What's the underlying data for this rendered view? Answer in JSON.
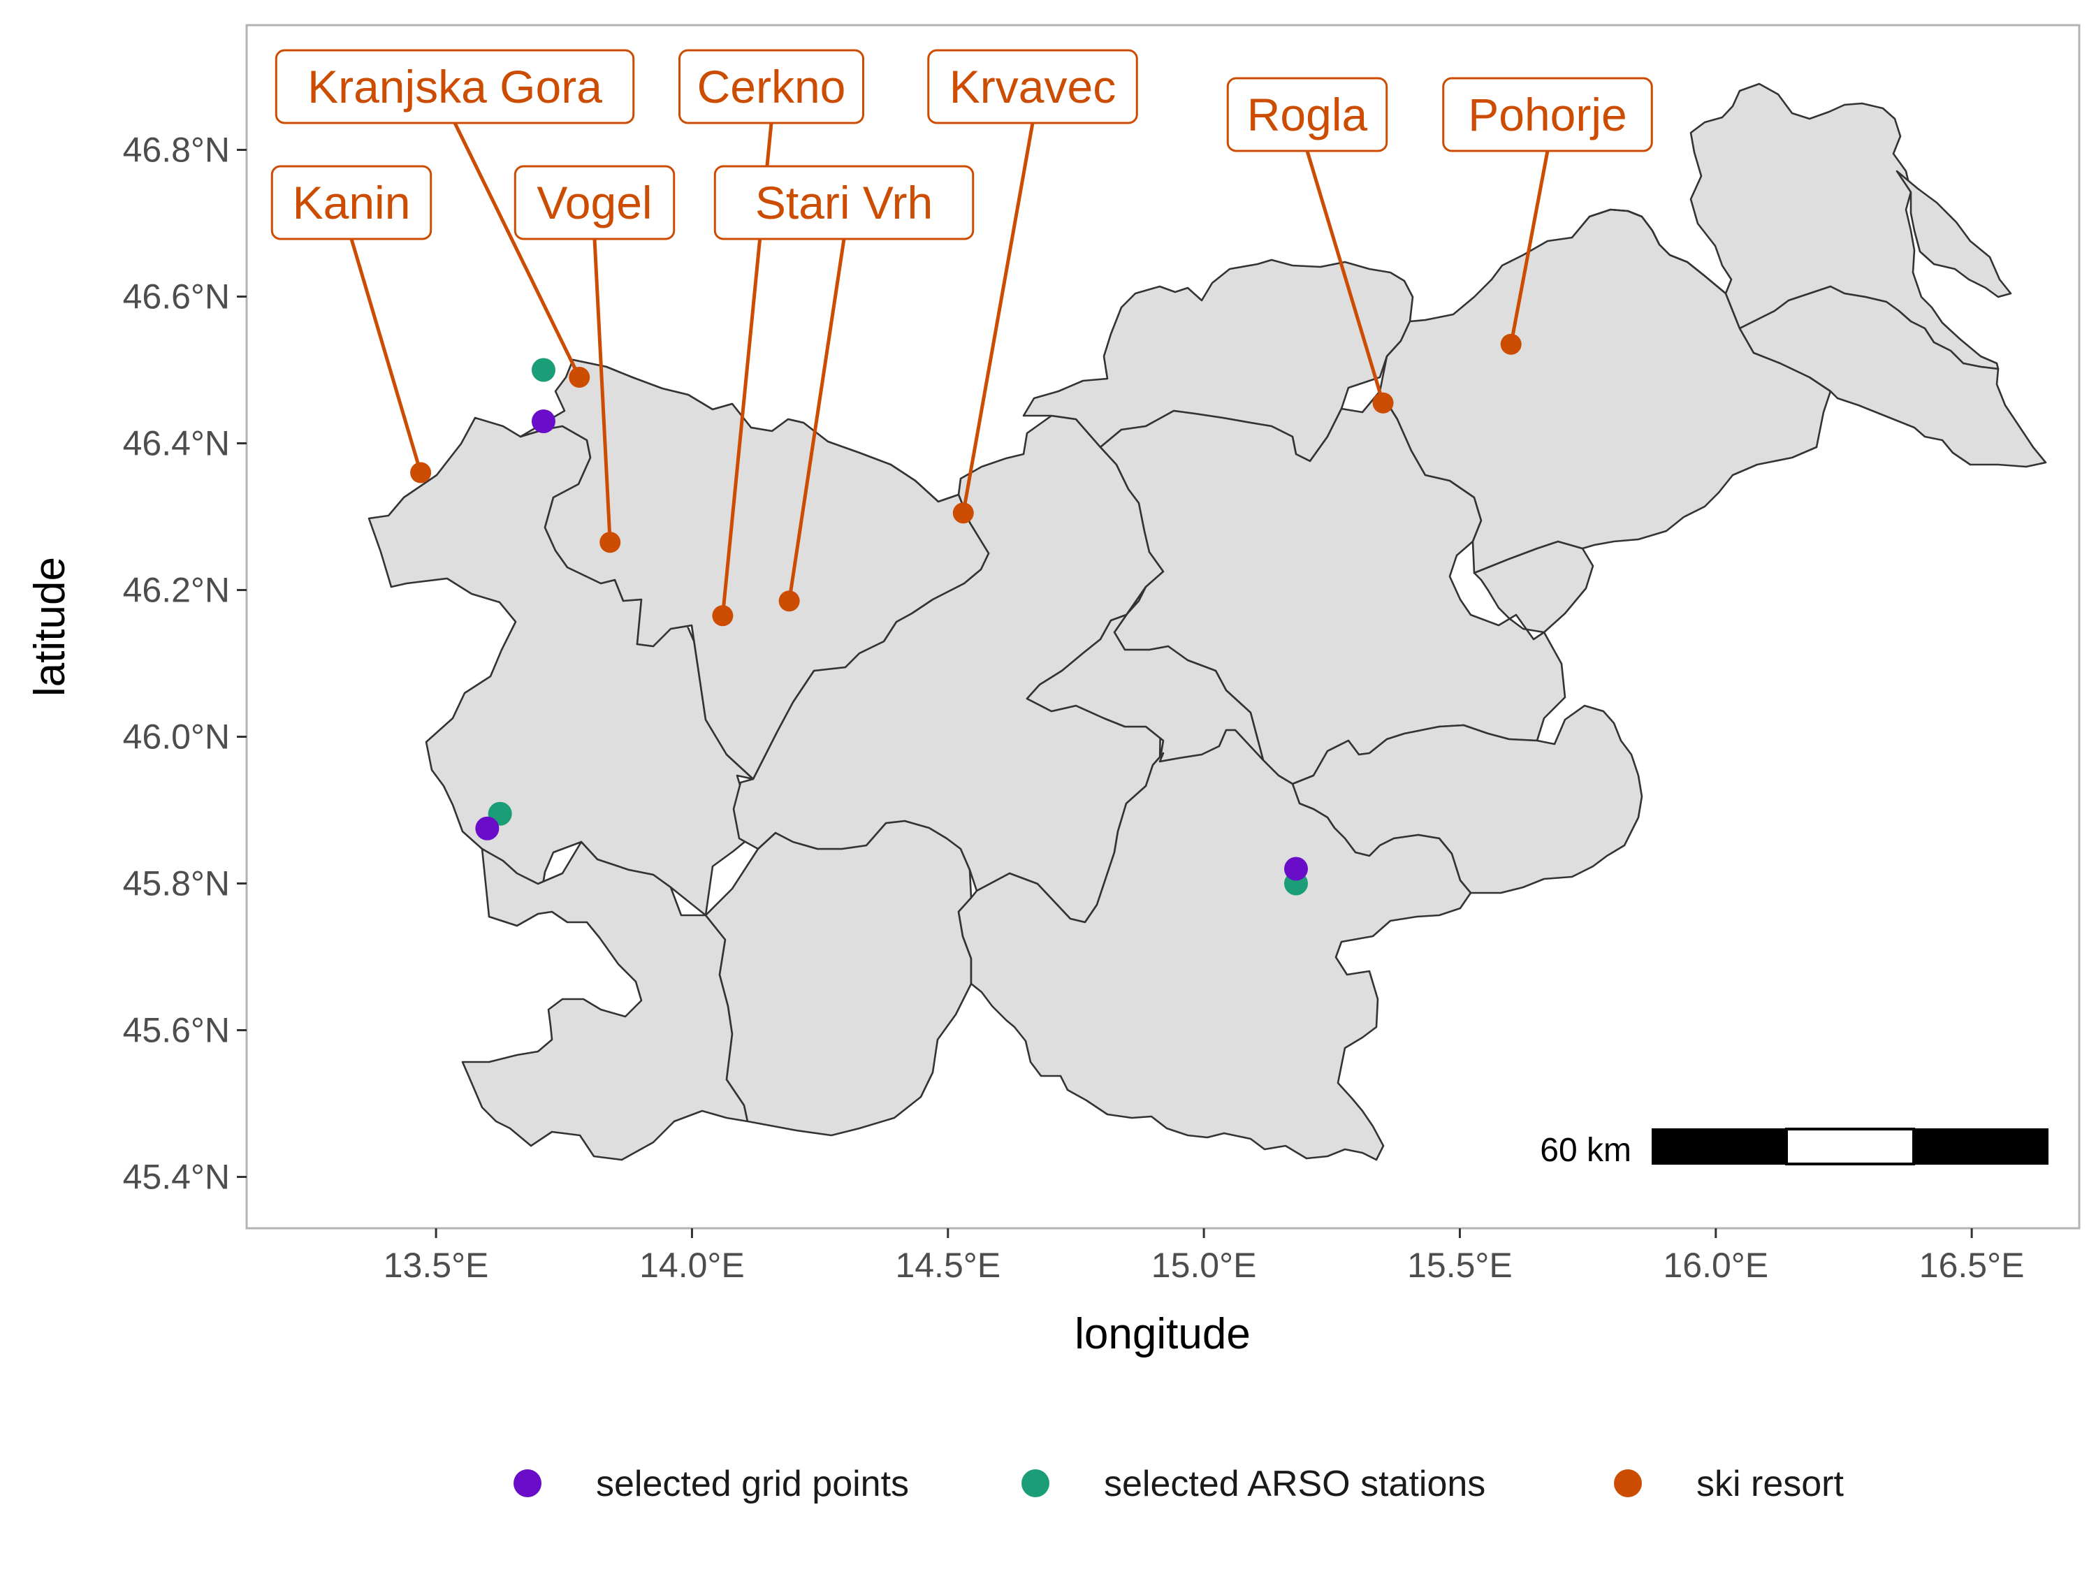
{
  "map": {
    "xlabel": "longitude",
    "ylabel": "latitude",
    "x_ticks": [
      "13.5°E",
      "14.0°E",
      "14.5°E",
      "15.0°E",
      "15.5°E",
      "16.0°E",
      "16.5°E"
    ],
    "y_ticks": [
      "45.4°N",
      "45.6°N",
      "45.8°N",
      "46.0°N",
      "46.2°N",
      "46.4°N",
      "46.6°N",
      "46.8°N"
    ],
    "x_tick_values": [
      13.5,
      14.0,
      14.5,
      15.0,
      15.5,
      16.0,
      16.5
    ],
    "y_tick_values": [
      45.4,
      45.6,
      45.8,
      46.0,
      46.2,
      46.4,
      46.6,
      46.8
    ],
    "xlim": [
      13.13,
      16.71
    ],
    "ylim": [
      45.33,
      46.97
    ],
    "scale_bar_label": "60 km",
    "colors": {
      "grid_points": "#6a0dc8",
      "arso_stations": "#1b9e77",
      "ski_resort": "#cc4c02",
      "land_fill": "#dedede",
      "border": "#333333",
      "panel_border": "#b3b3b3"
    },
    "legend": {
      "position": "bottom",
      "items": [
        {
          "label": "selected grid points",
          "color": "#6a0dc8"
        },
        {
          "label": "selected ARSO stations",
          "color": "#1b9e77"
        },
        {
          "label": "ski resort",
          "color": "#cc4c02"
        }
      ]
    },
    "grid_points": [
      {
        "lon": 13.71,
        "lat": 46.43
      },
      {
        "lon": 13.6,
        "lat": 45.875
      },
      {
        "lon": 15.18,
        "lat": 45.82
      }
    ],
    "arso_stations": [
      {
        "lon": 13.71,
        "lat": 46.5
      },
      {
        "lon": 13.625,
        "lat": 45.895
      },
      {
        "lon": 15.18,
        "lat": 45.8
      }
    ],
    "ski_resorts": [
      {
        "name": "Kanin",
        "lon": 13.47,
        "lat": 46.36
      },
      {
        "name": "Kranjska Gora",
        "lon": 13.78,
        "lat": 46.49
      },
      {
        "name": "Vogel",
        "lon": 13.84,
        "lat": 46.265
      },
      {
        "name": "Cerkno",
        "lon": 14.06,
        "lat": 46.165
      },
      {
        "name": "Stari Vrh",
        "lon": 14.19,
        "lat": 46.185
      },
      {
        "name": "Krvavec",
        "lon": 14.53,
        "lat": 46.305
      },
      {
        "name": "Rogla",
        "lon": 15.35,
        "lat": 46.455
      },
      {
        "name": "Pohorje",
        "lon": 15.6,
        "lat": 46.535
      }
    ]
  }
}
